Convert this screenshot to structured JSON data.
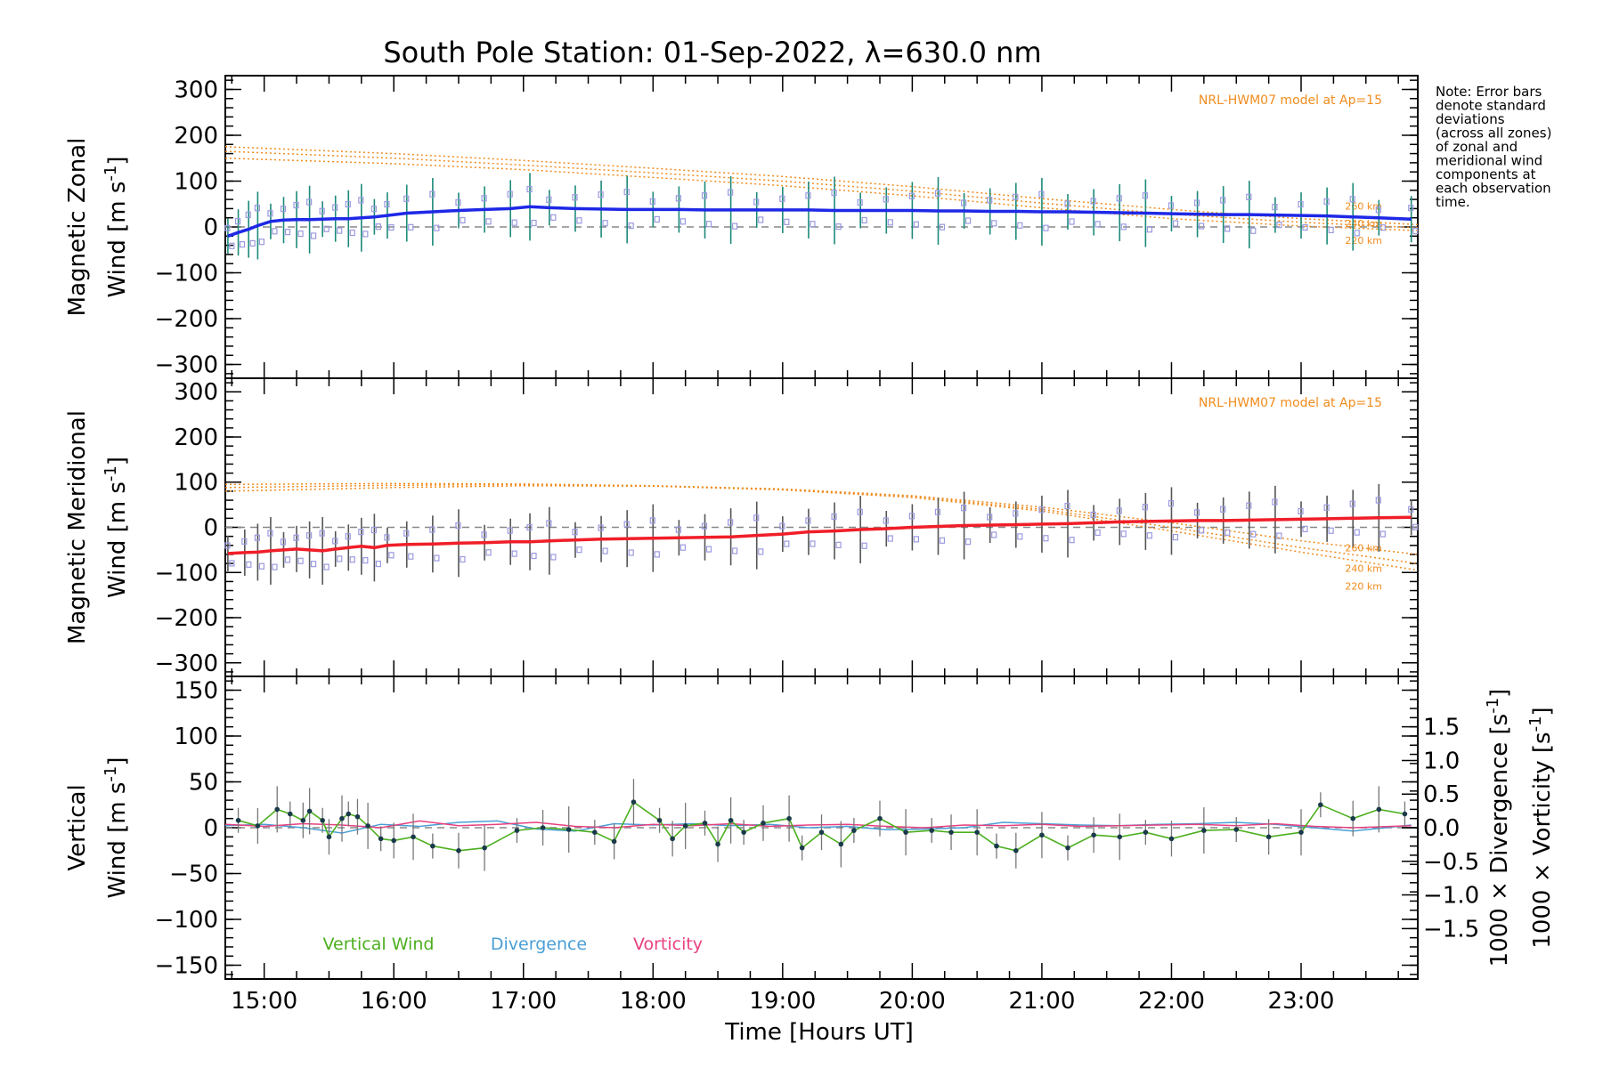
{
  "title": "South Pole Station: 01-Sep-2022, λ=630.0 nm",
  "note": [
    "Note: Error bars",
    "denote standard",
    "deviations",
    "(across all zones)",
    "of zonal and",
    "meridional wind",
    "components at",
    "each observation",
    "time."
  ],
  "colors": {
    "zonal": "#1e28e6",
    "meridional": "#f01e28",
    "vertical": "#4caf1e",
    "divergence": "#4a9fd6",
    "vorticity": "#e8407f",
    "model": "#f08c1e",
    "zone_marker": "#9a9ae0"
  },
  "chart_data": [
    {
      "type": "line",
      "name": "zonal",
      "ylabel_top": "Magnetic Zonal",
      "ylabel_bottom": "Wind [m s",
      "ylabel_sup": "-1",
      "ylabel_close": "]",
      "ylim": [
        -330,
        330
      ],
      "yticks": [
        -300,
        -200,
        -100,
        0,
        100,
        200,
        300
      ],
      "model_label": "NRL-HWM07 model at Ap=15",
      "model_altitudes": [
        "260 km",
        "240 km",
        "220 km"
      ],
      "model": [
        {
          "x": [
            14.7,
            16,
            17,
            18,
            19,
            20,
            21,
            22,
            23,
            23.9
          ],
          "y": [
            175,
            160,
            145,
            128,
            110,
            88,
            62,
            38,
            18,
            5
          ]
        },
        {
          "x": [
            14.7,
            16,
            17,
            18,
            19,
            20,
            21,
            22,
            23,
            23.9
          ],
          "y": [
            165,
            150,
            135,
            118,
            100,
            78,
            52,
            28,
            10,
            -2
          ]
        },
        {
          "x": [
            14.7,
            16,
            17,
            18,
            19,
            20,
            21,
            22,
            23,
            23.9
          ],
          "y": [
            150,
            138,
            125,
            108,
            90,
            68,
            42,
            18,
            2,
            -8
          ]
        }
      ],
      "series": {
        "x": [
          14.72,
          14.8,
          14.88,
          14.95,
          15.05,
          15.15,
          15.25,
          15.35,
          15.45,
          15.55,
          15.65,
          15.75,
          15.85,
          15.95,
          16.1,
          16.3,
          16.5,
          16.7,
          16.9,
          17.05,
          17.2,
          17.4,
          17.6,
          17.8,
          18.0,
          18.2,
          18.4,
          18.6,
          18.8,
          19.0,
          19.2,
          19.4,
          19.6,
          19.8,
          20.0,
          20.2,
          20.4,
          20.6,
          20.8,
          21.0,
          21.2,
          21.4,
          21.6,
          21.8,
          22.0,
          22.2,
          22.4,
          22.6,
          22.8,
          23.0,
          23.2,
          23.4,
          23.6,
          23.85
        ],
        "y": [
          -20,
          -12,
          -5,
          3,
          12,
          15,
          16,
          16,
          17,
          18,
          18,
          20,
          22,
          25,
          30,
          33,
          36,
          38,
          40,
          44,
          42,
          40,
          39,
          38,
          38,
          38,
          37,
          37,
          37,
          37,
          37,
          36,
          36,
          36,
          36,
          35,
          35,
          34,
          34,
          33,
          33,
          32,
          31,
          30,
          29,
          28,
          27,
          27,
          26,
          25,
          24,
          22,
          20,
          17
        ]
      }
    },
    {
      "type": "line",
      "name": "meridional",
      "ylabel_top": "Magnetic Meridional",
      "ylabel_bottom": "Wind [m s",
      "ylabel_sup": "-1",
      "ylabel_close": "]",
      "ylim": [
        -330,
        330
      ],
      "yticks": [
        -300,
        -200,
        -100,
        0,
        100,
        200,
        300
      ],
      "model_label": "NRL-HWM07 model at Ap=15",
      "model_altitudes": [
        "260 km",
        "240 km",
        "220 km"
      ],
      "model": [
        {
          "x": [
            14.7,
            16,
            17,
            18,
            19,
            20,
            21,
            22,
            23,
            23.9
          ],
          "y": [
            95,
            97,
            96,
            92,
            85,
            70,
            45,
            10,
            -30,
            -60
          ]
        },
        {
          "x": [
            14.7,
            16,
            17,
            18,
            19,
            20,
            21,
            22,
            23,
            23.9
          ],
          "y": [
            88,
            93,
            95,
            92,
            84,
            68,
            40,
            0,
            -45,
            -80
          ]
        },
        {
          "x": [
            14.7,
            16,
            17,
            18,
            19,
            20,
            21,
            22,
            23,
            23.9
          ],
          "y": [
            80,
            88,
            92,
            91,
            83,
            66,
            36,
            -8,
            -55,
            -95
          ]
        }
      ],
      "series": {
        "x": [
          14.72,
          14.85,
          14.95,
          15.05,
          15.15,
          15.25,
          15.35,
          15.45,
          15.55,
          15.65,
          15.75,
          15.85,
          15.95,
          16.1,
          16.3,
          16.5,
          16.7,
          16.9,
          17.05,
          17.2,
          17.4,
          17.6,
          17.8,
          18.0,
          18.2,
          18.4,
          18.6,
          18.8,
          19.0,
          19.2,
          19.4,
          19.6,
          19.8,
          20.0,
          20.2,
          20.4,
          20.6,
          20.8,
          21.0,
          21.2,
          21.4,
          21.6,
          21.8,
          22.0,
          22.2,
          22.4,
          22.6,
          22.8,
          23.0,
          23.2,
          23.4,
          23.6,
          23.85
        ],
        "y": [
          -58,
          -56,
          -55,
          -52,
          -50,
          -48,
          -50,
          -52,
          -48,
          -45,
          -42,
          -45,
          -40,
          -38,
          -37,
          -35,
          -34,
          -32,
          -32,
          -30,
          -28,
          -26,
          -25,
          -24,
          -23,
          -22,
          -21,
          -18,
          -15,
          -10,
          -8,
          -5,
          -3,
          0,
          2,
          4,
          5,
          6,
          7,
          8,
          10,
          12,
          13,
          14,
          15,
          15,
          16,
          17,
          18,
          19,
          20,
          21,
          22
        ]
      }
    },
    {
      "type": "line",
      "name": "vertical",
      "ylabel_top": "Vertical",
      "ylabel_bottom": "Wind [m s",
      "ylabel_sup": "-1",
      "ylabel_close": "]",
      "ylim": [
        -165,
        165
      ],
      "yticks": [
        -150,
        -100,
        -50,
        0,
        50,
        100,
        150
      ],
      "y2label_div": "1000 × Divergence [s",
      "y2label_vor": "1000 × Vorticity [s",
      "y2label_sup": "-1",
      "y2label_close": "]",
      "y2ticks": [
        "1.5",
        "1.0",
        "0.5",
        "0.0",
        "−0.5",
        "−1.0",
        "−1.5"
      ],
      "legend": [
        "Vertical Wind",
        "Divergence",
        "Vorticity"
      ],
      "vertical": {
        "x": [
          14.8,
          14.95,
          15.1,
          15.2,
          15.3,
          15.35,
          15.45,
          15.5,
          15.6,
          15.65,
          15.72,
          15.8,
          15.9,
          16.0,
          16.15,
          16.3,
          16.5,
          16.7,
          16.95,
          17.15,
          17.35,
          17.55,
          17.7,
          17.85,
          18.05,
          18.15,
          18.25,
          18.4,
          18.5,
          18.6,
          18.7,
          18.85,
          19.05,
          19.15,
          19.3,
          19.45,
          19.55,
          19.75,
          19.95,
          20.15,
          20.3,
          20.5,
          20.65,
          20.8,
          21.0,
          21.2,
          21.4,
          21.6,
          21.8,
          22.0,
          22.25,
          22.5,
          22.75,
          23.0,
          23.15,
          23.4,
          23.6,
          23.8
        ],
        "y": [
          8,
          2,
          20,
          15,
          8,
          18,
          8,
          -10,
          10,
          15,
          12,
          2,
          -12,
          -14,
          -10,
          -20,
          -25,
          -22,
          -3,
          0,
          -2,
          -5,
          -15,
          28,
          8,
          -12,
          2,
          5,
          -18,
          8,
          -5,
          5,
          10,
          -22,
          -5,
          -18,
          -3,
          10,
          -5,
          -3,
          -5,
          -5,
          -20,
          -25,
          -8,
          -22,
          -8,
          -10,
          -5,
          -12,
          -3,
          -2,
          -10,
          -5,
          25,
          10,
          20,
          15
        ]
      },
      "divergence": {
        "x": [
          14.7,
          15.0,
          15.3,
          15.6,
          15.9,
          16.2,
          16.5,
          16.8,
          17.1,
          17.4,
          17.7,
          18.0,
          18.3,
          18.6,
          18.9,
          19.2,
          19.5,
          19.8,
          20.1,
          20.4,
          20.7,
          21.0,
          21.3,
          21.6,
          21.9,
          22.2,
          22.5,
          22.8,
          23.1,
          23.4,
          23.85
        ],
        "y": [
          0.03,
          0.05,
          0.0,
          -0.08,
          0.05,
          0.02,
          0.08,
          0.1,
          -0.02,
          -0.05,
          0.06,
          0.04,
          0.06,
          0.03,
          0.05,
          0.0,
          0.02,
          -0.03,
          -0.02,
          0.0,
          0.08,
          0.06,
          0.04,
          0.03,
          0.05,
          0.06,
          0.08,
          0.05,
          0.0,
          -0.05,
          0.04
        ]
      },
      "vorticity": {
        "x": [
          14.7,
          15.0,
          15.3,
          15.6,
          15.9,
          16.2,
          16.5,
          16.8,
          17.1,
          17.4,
          17.7,
          18.0,
          18.3,
          18.6,
          18.9,
          19.2,
          19.5,
          19.8,
          20.1,
          20.4,
          20.7,
          21.0,
          21.3,
          21.6,
          21.9,
          22.2,
          22.5,
          22.8,
          23.1,
          23.4,
          23.85
        ],
        "y": [
          0.05,
          0.02,
          0.06,
          0.04,
          0.0,
          0.1,
          0.03,
          0.05,
          0.08,
          0.02,
          0.0,
          0.05,
          0.03,
          0.06,
          0.02,
          0.04,
          0.05,
          0.02,
          0.0,
          0.04,
          0.03,
          0.05,
          0.02,
          0.03,
          0.04,
          0.05,
          0.03,
          0.06,
          0.02,
          0.0,
          0.03
        ]
      }
    }
  ],
  "xaxis": {
    "label": "Time [Hours UT]",
    "xlim": [
      14.7,
      23.9
    ],
    "ticks": [
      15,
      16,
      17,
      18,
      19,
      20,
      21,
      22,
      23
    ],
    "ticklabels": [
      "15:00",
      "16:00",
      "17:00",
      "18:00",
      "19:00",
      "20:00",
      "21:00",
      "22:00",
      "23:00"
    ]
  }
}
